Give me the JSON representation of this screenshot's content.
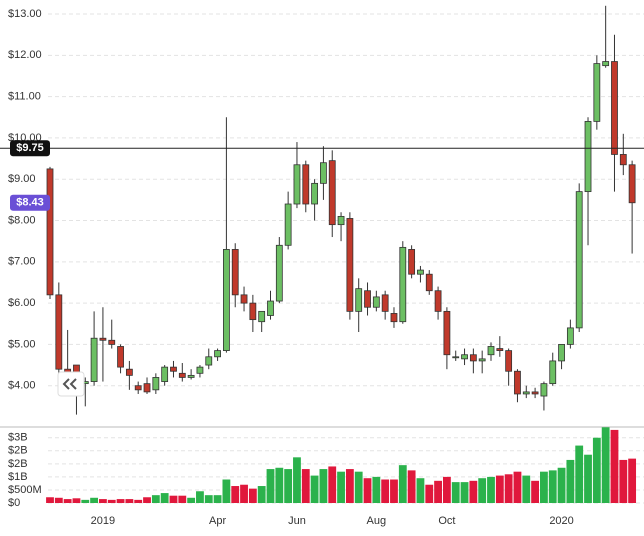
{
  "chart_data": {
    "type": "candlestick",
    "categories": [
      null,
      null,
      null,
      null,
      null,
      null,
      "2019",
      null,
      null,
      null,
      null,
      null,
      null,
      null,
      null,
      null,
      null,
      null,
      null,
      "Apr",
      null,
      null,
      null,
      null,
      null,
      null,
      null,
      null,
      "Jun",
      null,
      null,
      null,
      null,
      null,
      null,
      null,
      null,
      "Aug",
      null,
      null,
      null,
      null,
      null,
      null,
      null,
      "Oct",
      null,
      null,
      null,
      null,
      null,
      null,
      null,
      null,
      null,
      null,
      null,
      null,
      "2020",
      null,
      null,
      null,
      null,
      null,
      null,
      null,
      null
    ],
    "open": [
      9.25,
      6.2,
      4.4,
      4.5,
      4.05,
      4.1,
      5.15,
      5.1,
      4.95,
      4.4,
      4.0,
      4.05,
      3.9,
      4.1,
      4.45,
      4.3,
      4.2,
      4.3,
      4.5,
      4.7,
      4.85,
      7.3,
      6.2,
      6.0,
      5.55,
      5.7,
      6.05,
      7.4,
      8.4,
      9.35,
      8.4,
      8.9,
      9.45,
      7.9,
      8.05,
      5.8,
      6.3,
      5.9,
      6.2,
      5.75,
      5.55,
      7.3,
      6.7,
      6.7,
      6.3,
      5.8,
      4.7,
      4.65,
      4.75,
      4.6,
      4.75,
      4.9,
      4.85,
      4.35,
      3.8,
      3.85,
      3.75,
      4.05,
      4.6,
      5.0,
      5.4,
      8.7,
      10.4,
      11.75,
      11.85,
      9.6,
      9.35
    ],
    "high": [
      9.3,
      6.5,
      5.35,
      4.5,
      4.2,
      5.8,
      5.9,
      5.6,
      5.0,
      4.6,
      4.1,
      4.2,
      4.3,
      4.5,
      4.6,
      4.55,
      4.4,
      4.5,
      4.9,
      4.9,
      10.5,
      7.45,
      6.4,
      6.2,
      5.8,
      6.3,
      7.6,
      8.7,
      9.9,
      9.45,
      9.0,
      9.8,
      9.7,
      8.2,
      8.2,
      6.6,
      6.5,
      6.3,
      6.3,
      5.9,
      7.5,
      7.4,
      6.9,
      6.8,
      6.4,
      5.9,
      4.85,
      4.9,
      4.9,
      4.85,
      5.05,
      5.2,
      4.9,
      4.4,
      4.0,
      3.95,
      4.1,
      4.8,
      5.0,
      5.6,
      8.9,
      10.5,
      12.0,
      13.2,
      12.5,
      10.1,
      9.45
    ],
    "low": [
      6.1,
      4.3,
      4.2,
      3.3,
      3.5,
      4.0,
      4.1,
      4.9,
      4.3,
      3.9,
      3.8,
      3.8,
      3.8,
      4.0,
      4.2,
      4.1,
      4.15,
      4.2,
      4.4,
      4.6,
      4.8,
      5.9,
      5.8,
      5.3,
      5.3,
      5.6,
      6.0,
      7.3,
      8.3,
      8.2,
      8.0,
      8.5,
      7.6,
      7.5,
      5.6,
      5.3,
      5.7,
      5.8,
      5.6,
      5.4,
      5.5,
      6.6,
      6.5,
      6.2,
      5.6,
      4.4,
      4.6,
      4.5,
      4.3,
      4.3,
      4.6,
      4.7,
      4.0,
      3.6,
      3.7,
      3.7,
      3.4,
      4.0,
      4.4,
      4.9,
      5.3,
      7.4,
      10.2,
      11.7,
      8.7,
      9.1,
      7.2
    ],
    "close": [
      6.2,
      4.4,
      4.3,
      4.3,
      4.1,
      5.15,
      5.1,
      5.0,
      4.45,
      4.25,
      3.9,
      3.85,
      4.2,
      4.45,
      4.35,
      4.2,
      4.25,
      4.45,
      4.7,
      4.85,
      7.3,
      6.2,
      6.0,
      5.6,
      5.8,
      6.05,
      7.4,
      8.4,
      9.35,
      8.4,
      8.9,
      9.4,
      7.9,
      8.1,
      5.8,
      6.35,
      5.9,
      6.15,
      5.8,
      5.55,
      7.35,
      6.7,
      6.8,
      6.3,
      5.8,
      4.75,
      4.7,
      4.75,
      4.6,
      4.65,
      4.95,
      4.85,
      4.35,
      3.8,
      3.85,
      3.8,
      4.05,
      4.6,
      5.0,
      5.4,
      8.7,
      10.4,
      11.8,
      11.85,
      9.6,
      9.35,
      8.43
    ],
    "up_color": "#6cbf63",
    "down_color": "#c0392b",
    "ylim": [
      3.0,
      13.34
    ],
    "yticks": [
      {
        "value": 13,
        "label": "$13.00"
      },
      {
        "value": 12,
        "label": "$12.00"
      },
      {
        "value": 11,
        "label": "$11.00"
      },
      {
        "value": 10,
        "label": "$10.00"
      },
      {
        "value": 9,
        "label": "$9.00"
      },
      {
        "value": 8,
        "label": "$8.00"
      },
      {
        "value": 7,
        "label": "$7.00"
      },
      {
        "value": 6,
        "label": "$6.00"
      },
      {
        "value": 5,
        "label": "$5.00"
      },
      {
        "value": 4,
        "label": "$4.00"
      }
    ],
    "grid": true,
    "price_line": {
      "value": 9.75,
      "label": "$9.75"
    },
    "last_price": {
      "value": 8.43,
      "label": "$8.43",
      "color": "#6a4fd6"
    },
    "volume": {
      "values": [
        0.22,
        0.2,
        0.15,
        0.18,
        0.12,
        0.2,
        0.15,
        0.12,
        0.15,
        0.15,
        0.12,
        0.22,
        0.3,
        0.38,
        0.28,
        0.28,
        0.2,
        0.45,
        0.3,
        0.3,
        0.9,
        0.65,
        0.7,
        0.55,
        0.65,
        1.3,
        1.35,
        1.3,
        1.75,
        1.3,
        1.05,
        1.3,
        1.4,
        1.2,
        1.3,
        1.2,
        0.95,
        1.0,
        0.9,
        0.9,
        1.45,
        1.25,
        0.95,
        0.7,
        0.85,
        1.0,
        0.8,
        0.8,
        0.85,
        0.95,
        1.0,
        1.05,
        1.1,
        1.2,
        1.05,
        0.85,
        1.2,
        1.25,
        1.35,
        1.65,
        2.2,
        1.85,
        2.5,
        2.9,
        2.8,
        1.65,
        1.7
      ],
      "up_color": "#2bb24c",
      "down_color": "#e0183c",
      "ylim": [
        0,
        2.95
      ],
      "yticks": [
        {
          "value": 2.5,
          "label": "$3B"
        },
        {
          "value": 2,
          "label": "$2B"
        },
        {
          "value": 1.5,
          "label": "$2B"
        },
        {
          "value": 1,
          "label": "$1B"
        },
        {
          "value": 0.5,
          "label": "$500M"
        },
        {
          "value": 0,
          "label": "$0"
        }
      ]
    }
  }
}
